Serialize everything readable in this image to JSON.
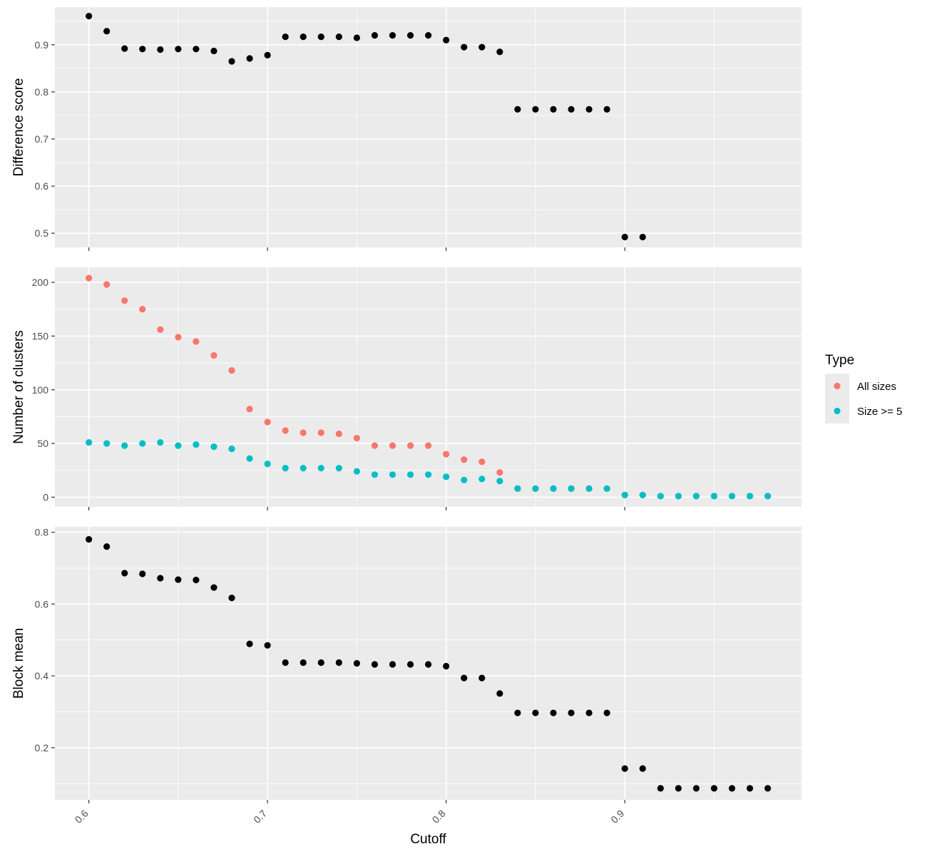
{
  "chart_data": [
    {
      "type": "scatter",
      "ylabel": "Difference score",
      "ylim": [
        0.47,
        0.98
      ],
      "yticks": [
        0.5,
        0.6,
        0.7,
        0.8,
        0.9
      ],
      "ytick_labels": [
        "0.5",
        "0.6",
        "0.7",
        "0.8",
        "0.9"
      ],
      "xlim": [
        0.581,
        0.9989
      ],
      "grid": true,
      "series": [
        {
          "name": "",
          "color": "#000000",
          "points": [
            [
              0.6,
              0.961
            ],
            [
              0.61,
              0.929
            ],
            [
              0.62,
              0.892
            ],
            [
              0.63,
              0.891
            ],
            [
              0.64,
              0.89
            ],
            [
              0.65,
              0.891
            ],
            [
              0.66,
              0.891
            ],
            [
              0.67,
              0.887
            ],
            [
              0.68,
              0.865
            ],
            [
              0.69,
              0.871
            ],
            [
              0.7,
              0.878
            ],
            [
              0.71,
              0.917
            ],
            [
              0.72,
              0.917
            ],
            [
              0.73,
              0.917
            ],
            [
              0.74,
              0.917
            ],
            [
              0.75,
              0.915
            ],
            [
              0.76,
              0.92
            ],
            [
              0.77,
              0.92
            ],
            [
              0.78,
              0.92
            ],
            [
              0.79,
              0.92
            ],
            [
              0.8,
              0.91
            ],
            [
              0.81,
              0.895
            ],
            [
              0.82,
              0.895
            ],
            [
              0.83,
              0.885
            ],
            [
              0.84,
              0.763
            ],
            [
              0.85,
              0.763
            ],
            [
              0.86,
              0.763
            ],
            [
              0.87,
              0.763
            ],
            [
              0.88,
              0.763
            ],
            [
              0.89,
              0.763
            ],
            [
              0.9,
              0.492
            ],
            [
              0.91,
              0.492
            ]
          ]
        }
      ]
    },
    {
      "type": "scatter",
      "ylabel": "Number of clusters",
      "ylim": [
        -9,
        214
      ],
      "yticks": [
        0,
        50,
        100,
        150,
        200
      ],
      "ytick_labels": [
        "0",
        "50",
        "100",
        "150",
        "200"
      ],
      "xlim": [
        0.581,
        0.9989
      ],
      "grid": true,
      "legend": {
        "title": "Type",
        "placement": "right",
        "entries": [
          {
            "label": "All sizes",
            "color": "#F8766D"
          },
          {
            "label": "Size >= 5",
            "color": "#00BFC4"
          }
        ]
      },
      "series": [
        {
          "name": "All sizes",
          "color": "#F8766D",
          "points": [
            [
              0.6,
              204
            ],
            [
              0.61,
              198
            ],
            [
              0.62,
              183
            ],
            [
              0.63,
              175
            ],
            [
              0.64,
              156
            ],
            [
              0.65,
              149
            ],
            [
              0.66,
              145
            ],
            [
              0.67,
              132
            ],
            [
              0.68,
              118
            ],
            [
              0.69,
              82
            ],
            [
              0.7,
              70
            ],
            [
              0.71,
              62
            ],
            [
              0.72,
              60
            ],
            [
              0.73,
              60
            ],
            [
              0.74,
              59
            ],
            [
              0.75,
              55
            ],
            [
              0.76,
              48
            ],
            [
              0.77,
              48
            ],
            [
              0.78,
              48
            ],
            [
              0.79,
              48
            ],
            [
              0.8,
              40
            ],
            [
              0.81,
              35
            ],
            [
              0.82,
              33
            ],
            [
              0.83,
              23
            ],
            [
              0.84,
              8
            ],
            [
              0.85,
              8
            ],
            [
              0.86,
              8
            ],
            [
              0.87,
              8
            ],
            [
              0.88,
              8
            ],
            [
              0.89,
              8
            ],
            [
              0.9,
              2
            ],
            [
              0.91,
              2
            ],
            [
              0.92,
              1
            ],
            [
              0.93,
              1
            ],
            [
              0.94,
              1
            ],
            [
              0.95,
              1
            ],
            [
              0.96,
              1
            ],
            [
              0.97,
              1
            ],
            [
              0.98,
              1
            ]
          ]
        },
        {
          "name": "Size >= 5",
          "color": "#00BFC4",
          "points": [
            [
              0.6,
              51
            ],
            [
              0.61,
              50
            ],
            [
              0.62,
              48
            ],
            [
              0.63,
              50
            ],
            [
              0.64,
              51
            ],
            [
              0.65,
              48
            ],
            [
              0.66,
              49
            ],
            [
              0.67,
              47
            ],
            [
              0.68,
              45
            ],
            [
              0.69,
              36
            ],
            [
              0.7,
              31
            ],
            [
              0.71,
              27
            ],
            [
              0.72,
              27
            ],
            [
              0.73,
              27
            ],
            [
              0.74,
              27
            ],
            [
              0.75,
              24
            ],
            [
              0.76,
              21
            ],
            [
              0.77,
              21
            ],
            [
              0.78,
              21
            ],
            [
              0.79,
              21
            ],
            [
              0.8,
              19
            ],
            [
              0.81,
              16
            ],
            [
              0.82,
              17
            ],
            [
              0.83,
              15
            ],
            [
              0.84,
              8
            ],
            [
              0.85,
              8
            ],
            [
              0.86,
              8
            ],
            [
              0.87,
              8
            ],
            [
              0.88,
              8
            ],
            [
              0.89,
              8
            ],
            [
              0.9,
              2
            ],
            [
              0.91,
              2
            ],
            [
              0.92,
              1
            ],
            [
              0.93,
              1
            ],
            [
              0.94,
              1
            ],
            [
              0.95,
              1
            ],
            [
              0.96,
              1
            ],
            [
              0.97,
              1
            ],
            [
              0.98,
              1
            ]
          ]
        }
      ]
    },
    {
      "type": "scatter",
      "ylabel": "Block mean",
      "xlabel": "Cutoff",
      "ylim": [
        0.055,
        0.815
      ],
      "yticks": [
        0.2,
        0.4,
        0.6,
        0.8
      ],
      "ytick_labels": [
        "0.2",
        "0.4",
        "0.6",
        "0.8"
      ],
      "xlim": [
        0.581,
        0.9989
      ],
      "xticks": [
        0.6,
        0.7,
        0.8,
        0.9
      ],
      "xtick_labels": [
        "0.6",
        "0.7",
        "0.8",
        "0.9"
      ],
      "grid": true,
      "series": [
        {
          "name": "",
          "color": "#000000",
          "points": [
            [
              0.6,
              0.78
            ],
            [
              0.61,
              0.76
            ],
            [
              0.62,
              0.686
            ],
            [
              0.63,
              0.684
            ],
            [
              0.64,
              0.672
            ],
            [
              0.65,
              0.668
            ],
            [
              0.66,
              0.667
            ],
            [
              0.67,
              0.646
            ],
            [
              0.68,
              0.617
            ],
            [
              0.69,
              0.489
            ],
            [
              0.7,
              0.485
            ],
            [
              0.71,
              0.437
            ],
            [
              0.72,
              0.437
            ],
            [
              0.73,
              0.437
            ],
            [
              0.74,
              0.437
            ],
            [
              0.75,
              0.435
            ],
            [
              0.76,
              0.432
            ],
            [
              0.77,
              0.432
            ],
            [
              0.78,
              0.432
            ],
            [
              0.79,
              0.432
            ],
            [
              0.8,
              0.427
            ],
            [
              0.81,
              0.394
            ],
            [
              0.82,
              0.394
            ],
            [
              0.83,
              0.351
            ],
            [
              0.84,
              0.297
            ],
            [
              0.85,
              0.297
            ],
            [
              0.86,
              0.297
            ],
            [
              0.87,
              0.297
            ],
            [
              0.88,
              0.297
            ],
            [
              0.89,
              0.297
            ],
            [
              0.9,
              0.142
            ],
            [
              0.91,
              0.142
            ],
            [
              0.92,
              0.087
            ],
            [
              0.93,
              0.087
            ],
            [
              0.94,
              0.087
            ],
            [
              0.95,
              0.087
            ],
            [
              0.96,
              0.087
            ],
            [
              0.97,
              0.087
            ],
            [
              0.98,
              0.087
            ]
          ]
        }
      ]
    }
  ]
}
